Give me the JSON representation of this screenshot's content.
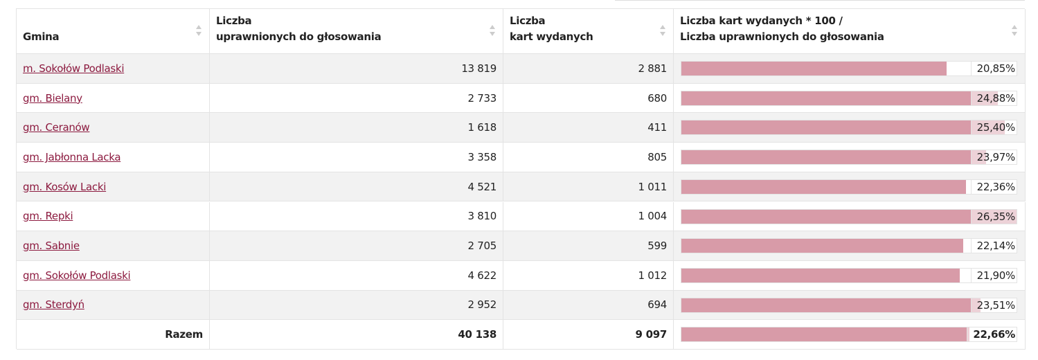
{
  "table": {
    "headers": [
      "Gmina",
      "Liczba\nuprawnionych do głosowania",
      "Liczba\nkart wydanych",
      "Liczba kart wydanych * 100 /\nLiczba uprawnionych do głosowania"
    ],
    "rows": [
      [
        "m. Sokołów Podlaski",
        "13 819",
        "2 881",
        {
          "value": 20.85,
          "label": "20,85%"
        }
      ],
      [
        "gm. Bielany",
        "2 733",
        "680",
        {
          "value": 24.88,
          "label": "24,88%"
        }
      ],
      [
        "gm. Ceranów",
        "1 618",
        "411",
        {
          "value": 25.4,
          "label": "25,40%"
        }
      ],
      [
        "gm. Jabłonna Lacka",
        "3 358",
        "805",
        {
          "value": 23.97,
          "label": "23,97%"
        }
      ],
      [
        "gm. Kosów Lacki",
        "4 521",
        "1 011",
        {
          "value": 22.36,
          "label": "22,36%"
        }
      ],
      [
        "gm. Repki",
        "3 810",
        "1 004",
        {
          "value": 26.35,
          "label": "26,35%"
        }
      ],
      [
        "gm. Sabnie",
        "2 705",
        "599",
        {
          "value": 22.14,
          "label": "22,14%"
        }
      ],
      [
        "gm. Sokołów Podlaski",
        "4 622",
        "1 012",
        {
          "value": 21.9,
          "label": "21,90%"
        }
      ],
      [
        "gm. Sterdyń",
        "2 952",
        "694",
        {
          "value": 23.51,
          "label": "23,51%"
        }
      ]
    ],
    "total": [
      "Razem",
      "40 138",
      "9 097",
      {
        "value": 22.66,
        "label": "22,66%"
      }
    ]
  }
}
